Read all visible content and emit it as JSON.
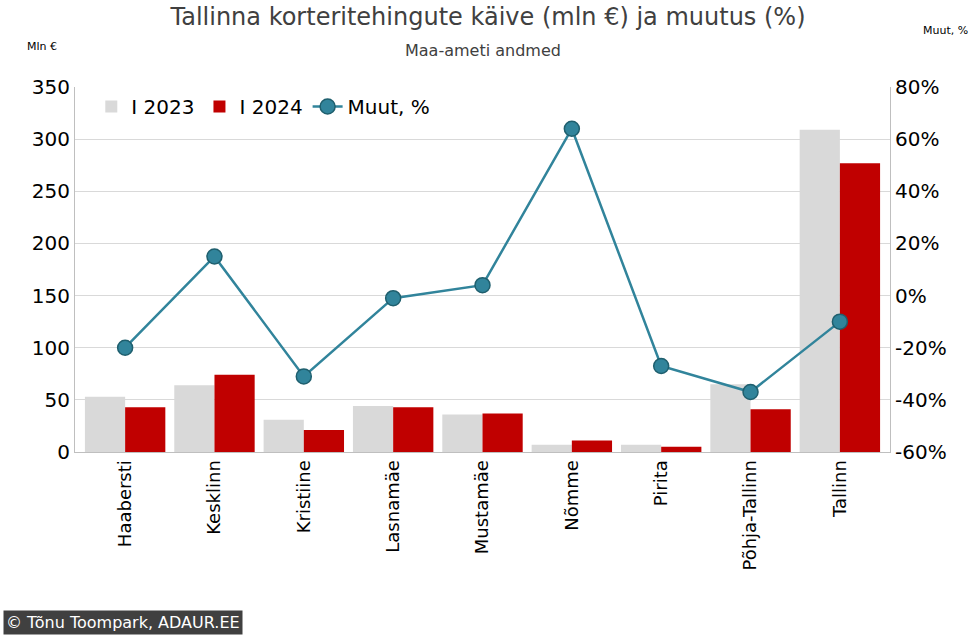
{
  "chart_data": {
    "type": "bar",
    "title": "Tallinna korteritehingute käive (mln €) ja muutus (%)",
    "subtitle": "Maa-ameti andmed",
    "y_label": "Mln €",
    "y2_label": "Muut, %",
    "annotations": [
      "© Tõnu Toompark, ADAUR.EE"
    ],
    "categories": [
      "Haabersti",
      "Kesklinn",
      "Kristiine",
      "Lasnamäe",
      "Mustamäe",
      "Nõmme",
      "Pirita",
      "Põhja-Tallinn",
      "Tallinn"
    ],
    "series": [
      {
        "name": "I 2023",
        "type": "bar",
        "color": "#d9d9d9",
        "values": [
          53,
          64,
          31,
          44,
          36,
          7,
          7,
          65,
          309
        ]
      },
      {
        "name": "I 2024",
        "type": "bar",
        "color": "#c00000",
        "values": [
          43,
          74,
          21,
          43,
          37,
          11,
          5,
          41,
          277
        ]
      },
      {
        "name": "Muut, %",
        "type": "line",
        "axis": "y2",
        "color": "#31849b",
        "marker": "circle",
        "line_style": "solid",
        "values": [
          -20,
          15,
          -31,
          -1,
          4,
          64,
          -27,
          -37,
          -10
        ]
      }
    ],
    "ylim": [
      0,
      350
    ],
    "yticks": [
      0,
      50,
      100,
      150,
      200,
      250,
      300,
      350
    ],
    "y2lim": [
      -60,
      80
    ],
    "y2ticks": [
      {
        "value": -60,
        "label": "-60%"
      },
      {
        "value": -40,
        "label": "-40%"
      },
      {
        "value": -20,
        "label": "-20%"
      },
      {
        "value": 0,
        "label": "0%"
      },
      {
        "value": 20,
        "label": "20%"
      },
      {
        "value": 40,
        "label": "40%"
      },
      {
        "value": 60,
        "label": "60%"
      },
      {
        "value": 80,
        "label": "80%"
      }
    ],
    "grid": true,
    "legend": "top-left"
  }
}
